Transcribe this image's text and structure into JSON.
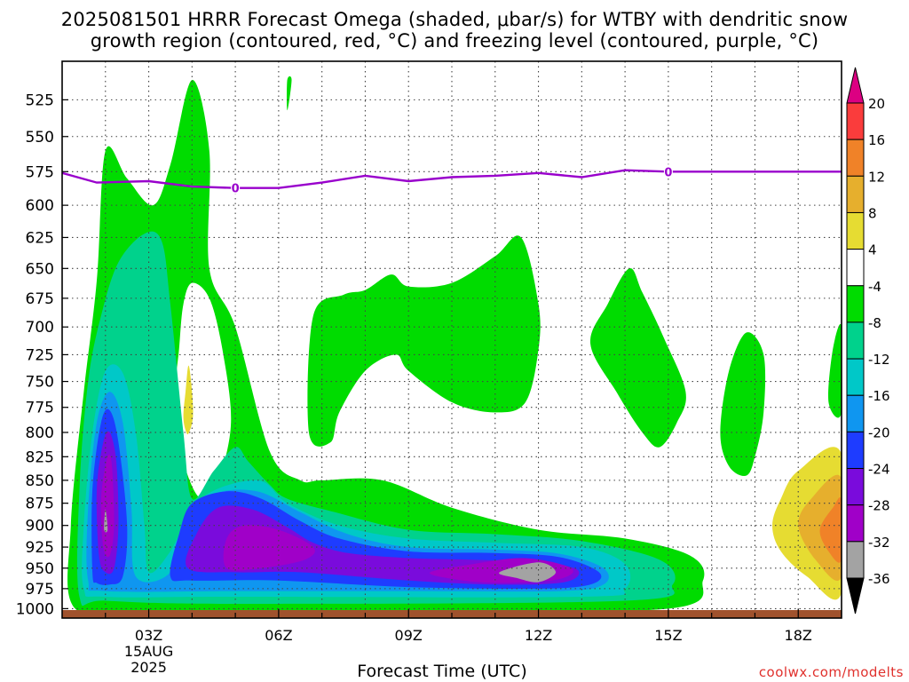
{
  "title_line1": "2025081501 HRRR Forecast Omega (shaded, μbar/s) for WTBY with dendritic snow",
  "title_line2": "growth region (contoured, red, °C) and freezing level (contoured, purple, °C)",
  "credit": "coolwx.com/modelts",
  "chart_data": {
    "type": "time-height cross section (filled contours)",
    "xlabel": "Forecast Time (UTC)",
    "x_ticks": [
      {
        "hour": 3,
        "label": "03Z"
      },
      {
        "hour": 6,
        "label": "06Z"
      },
      {
        "hour": 9,
        "label": "09Z"
      },
      {
        "hour": 12,
        "label": "12Z"
      },
      {
        "hour": 15,
        "label": "15Z"
      },
      {
        "hour": 18,
        "label": "18Z"
      }
    ],
    "date_label": [
      "15AUG",
      "2025"
    ],
    "xlim": [
      1,
      19
    ],
    "ylabel": "",
    "y_ticks": [
      525,
      550,
      575,
      600,
      625,
      650,
      675,
      700,
      725,
      750,
      775,
      800,
      825,
      850,
      875,
      900,
      925,
      950,
      975,
      1000
    ],
    "ylim": [
      500,
      1012
    ],
    "y_scale": "log pressure (hPa), inverted",
    "grid": true,
    "colorbar": {
      "levels": [
        -36,
        -32,
        -28,
        -24,
        -20,
        -16,
        -12,
        -8,
        -4,
        4,
        8,
        12,
        16,
        20
      ],
      "colors": [
        "#000000",
        "#a3a3a3",
        "#a000c8",
        "#7a0bdc",
        "#1e3cff",
        "#0f96f0",
        "#00c8c8",
        "#00d28c",
        "#00dc00",
        "#ffffff",
        "#e6dc32",
        "#e6af2d",
        "#f08228",
        "#fa3c3c",
        "#dc0082"
      ]
    },
    "freezing_level": {
      "label": "0",
      "color": "#9900cc",
      "points": [
        [
          1,
          576
        ],
        [
          1.8,
          583
        ],
        [
          3,
          582
        ],
        [
          4,
          586
        ],
        [
          5,
          587
        ],
        [
          6,
          587
        ],
        [
          7,
          583
        ],
        [
          8,
          578
        ],
        [
          9,
          582
        ],
        [
          10,
          579
        ],
        [
          11,
          578
        ],
        [
          12,
          576
        ],
        [
          13,
          579
        ],
        [
          14,
          574
        ],
        [
          15,
          575
        ],
        [
          17,
          575
        ],
        [
          19,
          575
        ]
      ],
      "label_hours": [
        5,
        15
      ]
    },
    "ground_color": "#a0522d",
    "omega_regions": [
      {
        "level": "-4",
        "color": "#00dc00",
        "points": [
          [
            1.3,
            1000
          ],
          [
            1.2,
            900
          ],
          [
            1.5,
            760
          ],
          [
            1.8,
            660
          ],
          [
            2,
            560
          ],
          [
            2.5,
            580
          ],
          [
            3.1,
            600
          ],
          [
            3.5,
            570
          ],
          [
            4,
            512
          ],
          [
            4.4,
            560
          ],
          [
            4.4,
            650
          ],
          [
            5,
            700
          ],
          [
            5.8,
            820
          ],
          [
            6.5,
            850
          ],
          [
            7,
            850
          ],
          [
            8.4,
            850
          ],
          [
            10,
            880
          ],
          [
            12,
            905
          ],
          [
            14,
            915
          ],
          [
            15.5,
            935
          ],
          [
            15.8,
            965
          ],
          [
            15,
            1000
          ],
          [
            9,
            1003
          ],
          [
            5,
            1003
          ],
          [
            3,
            1003
          ]
        ]
      },
      {
        "level": "-4",
        "color": "#00dc00",
        "points": [
          [
            6.7,
            800
          ],
          [
            6.8,
            690
          ],
          [
            7.5,
            672
          ],
          [
            8,
            668
          ],
          [
            8.6,
            655
          ],
          [
            9,
            665
          ],
          [
            10,
            662
          ],
          [
            11,
            640
          ],
          [
            11.6,
            625
          ],
          [
            12,
            680
          ],
          [
            12,
            720
          ],
          [
            11.7,
            770
          ],
          [
            11,
            780
          ],
          [
            10,
            770
          ],
          [
            9,
            740
          ],
          [
            8.7,
            725
          ],
          [
            8,
            740
          ],
          [
            7.4,
            780
          ],
          [
            7.2,
            810
          ]
        ]
      },
      {
        "level": "-4",
        "color": "#00dc00",
        "points": [
          [
            13.2,
            715
          ],
          [
            13.6,
            680
          ],
          [
            14.1,
            650
          ],
          [
            14.4,
            670
          ],
          [
            14.9,
            710
          ],
          [
            15.4,
            760
          ],
          [
            15.2,
            790
          ],
          [
            14.8,
            815
          ],
          [
            14.4,
            800
          ],
          [
            13.8,
            760
          ]
        ]
      },
      {
        "level": "-4",
        "color": "#00dc00",
        "points": [
          [
            16.2,
            800
          ],
          [
            16.4,
            740
          ],
          [
            16.8,
            705
          ],
          [
            17.2,
            725
          ],
          [
            17.2,
            780
          ],
          [
            17,
            825
          ],
          [
            16.8,
            845
          ],
          [
            16.4,
            835
          ]
        ]
      },
      {
        "level": "-4",
        "color": "#00dc00",
        "points": [
          [
            18.7,
            770
          ],
          [
            18.8,
            720
          ],
          [
            19,
            700
          ],
          [
            19,
            780
          ]
        ]
      },
      {
        "level": "-4",
        "color": "#00dc00",
        "points": [
          [
            6.2,
            512
          ],
          [
            6.3,
            512
          ],
          [
            6.2,
            532
          ]
        ]
      },
      {
        "level": "4",
        "color": "#ffffff",
        "points": [
          [
            3.7,
            720
          ],
          [
            3.8,
            680
          ],
          [
            4,
            662
          ],
          [
            4.4,
            675
          ],
          [
            4.7,
            720
          ],
          [
            4.9,
            790
          ],
          [
            4.6,
            850
          ],
          [
            4.2,
            870
          ],
          [
            3.8,
            830
          ],
          [
            3.6,
            770
          ]
        ]
      },
      {
        "level": "-8",
        "color": "#00d28c",
        "points": [
          [
            1.4,
            985
          ],
          [
            1.4,
            860
          ],
          [
            1.6,
            750
          ],
          [
            1.9,
            690
          ],
          [
            2.3,
            645
          ],
          [
            2.9,
            622
          ],
          [
            3.3,
            628
          ],
          [
            3.5,
            680
          ],
          [
            3.8,
            800
          ],
          [
            4,
            870
          ],
          [
            4.5,
            840
          ],
          [
            5,
            815
          ],
          [
            5.3,
            830
          ],
          [
            5.8,
            855
          ],
          [
            6.2,
            870
          ],
          [
            7.3,
            885
          ],
          [
            9,
            905
          ],
          [
            11,
            910
          ],
          [
            13,
            918
          ],
          [
            14.8,
            940
          ],
          [
            15.1,
            970
          ],
          [
            14,
            990
          ],
          [
            5,
            994
          ],
          [
            2,
            990
          ]
        ]
      },
      {
        "level": "-12",
        "color": "#00c8c8",
        "points": [
          [
            1.5,
            975
          ],
          [
            1.5,
            900
          ],
          [
            1.7,
            800
          ],
          [
            2,
            740
          ],
          [
            2.4,
            742
          ],
          [
            2.7,
            800
          ],
          [
            2.9,
            900
          ],
          [
            3,
            955
          ],
          [
            3.5,
            930
          ],
          [
            4.2,
            870
          ],
          [
            5.5,
            850
          ],
          [
            6.2,
            875
          ],
          [
            7.4,
            900
          ],
          [
            9,
            915
          ],
          [
            11,
            920
          ],
          [
            13,
            925
          ],
          [
            14,
            945
          ],
          [
            14,
            975
          ],
          [
            13,
            985
          ],
          [
            5,
            985
          ],
          [
            2,
            985
          ]
        ]
      },
      {
        "level": "-16",
        "color": "#0f96f0",
        "points": [
          [
            1.6,
            965
          ],
          [
            1.6,
            880
          ],
          [
            1.8,
            790
          ],
          [
            2.1,
            760
          ],
          [
            2.4,
            790
          ],
          [
            2.6,
            880
          ],
          [
            2.7,
            960
          ],
          [
            3.5,
            955
          ],
          [
            3.8,
            895
          ],
          [
            4.5,
            865
          ],
          [
            5.5,
            862
          ],
          [
            6.5,
            885
          ],
          [
            7.6,
            910
          ],
          [
            9,
            925
          ],
          [
            11,
            928
          ],
          [
            12.5,
            933
          ],
          [
            13.5,
            950
          ],
          [
            13.5,
            970
          ],
          [
            12.5,
            978
          ],
          [
            9,
            978
          ],
          [
            5,
            978
          ],
          [
            2,
            978
          ]
        ]
      },
      {
        "level": "-20",
        "color": "#1e3cff",
        "points": [
          [
            1.7,
            955
          ],
          [
            1.7,
            860
          ],
          [
            1.9,
            790
          ],
          [
            2.1,
            778
          ],
          [
            2.3,
            810
          ],
          [
            2.5,
            900
          ],
          [
            2.4,
            960
          ],
          [
            2.1,
            970
          ],
          [
            1.8,
            968
          ]
        ]
      },
      {
        "level": "-20",
        "color": "#1e3cff",
        "points": [
          [
            3.5,
            960
          ],
          [
            3.7,
            910
          ],
          [
            4,
            875
          ],
          [
            4.8,
            862
          ],
          [
            5.6,
            870
          ],
          [
            6.5,
            895
          ],
          [
            7.4,
            915
          ],
          [
            9,
            930
          ],
          [
            11,
            932
          ],
          [
            12.5,
            937
          ],
          [
            13.4,
            955
          ],
          [
            13.2,
            970
          ],
          [
            12,
            975
          ],
          [
            9,
            973
          ],
          [
            6,
            965
          ],
          [
            4,
            965
          ]
        ]
      },
      {
        "level": "-24",
        "color": "#7a0bdc",
        "points": [
          [
            1.85,
            935
          ],
          [
            1.8,
            860
          ],
          [
            1.95,
            810
          ],
          [
            2.1,
            800
          ],
          [
            2.25,
            830
          ],
          [
            2.3,
            900
          ],
          [
            2.2,
            950
          ],
          [
            2,
            955
          ]
        ]
      },
      {
        "level": "-24",
        "color": "#7a0bdc",
        "points": [
          [
            3.9,
            950
          ],
          [
            4.1,
            910
          ],
          [
            4.6,
            880
          ],
          [
            5.4,
            882
          ],
          [
            6.2,
            902
          ],
          [
            6.8,
            920
          ],
          [
            7.6,
            932
          ],
          [
            9,
            938
          ],
          [
            10.5,
            940
          ],
          [
            12,
            943
          ],
          [
            12.9,
            952
          ],
          [
            12.6,
            967
          ],
          [
            11,
            970
          ],
          [
            9,
            965
          ],
          [
            6.5,
            955
          ],
          [
            5,
            955
          ]
        ]
      },
      {
        "level": "-28",
        "color": "#a000c8",
        "points": [
          [
            1.95,
            925
          ],
          [
            1.9,
            870
          ],
          [
            2.05,
            825
          ],
          [
            2.15,
            835
          ],
          [
            2.2,
            900
          ],
          [
            2.1,
            935
          ]
        ]
      },
      {
        "level": "-28",
        "color": "#a000c8",
        "points": [
          [
            4.8,
            950
          ],
          [
            4.8,
            915
          ],
          [
            5.2,
            900
          ],
          [
            6,
            905
          ],
          [
            6.8,
            925
          ],
          [
            6.6,
            940
          ],
          [
            5.6,
            950
          ]
        ]
      },
      {
        "level": "-28",
        "color": "#a000c8",
        "points": [
          [
            9.5,
            955
          ],
          [
            10.5,
            945
          ],
          [
            11.6,
            938
          ],
          [
            12.5,
            945
          ],
          [
            12.8,
            955
          ],
          [
            12.3,
            965
          ],
          [
            11,
            968
          ],
          [
            10,
            963
          ]
        ]
      },
      {
        "level": "-32",
        "color": "#a3a3a3",
        "points": [
          [
            1.97,
            905
          ],
          [
            2,
            882
          ],
          [
            2.05,
            905
          ]
        ]
      },
      {
        "level": "-32",
        "color": "#a3a3a3",
        "points": [
          [
            11.1,
            955
          ],
          [
            12,
            943
          ],
          [
            12.4,
            955
          ],
          [
            12,
            967
          ],
          [
            11.5,
            962
          ]
        ]
      },
      {
        "level": "8",
        "color": "#e6dc32",
        "points": [
          [
            3.8,
            785
          ],
          [
            3.85,
            760
          ],
          [
            3.92,
            735
          ],
          [
            4,
            760
          ],
          [
            4.02,
            785
          ],
          [
            3.93,
            800
          ],
          [
            3.87,
            800
          ]
        ]
      },
      {
        "level": "8",
        "color": "#e6dc32",
        "points": [
          [
            17.4,
            900
          ],
          [
            17.6,
            870
          ],
          [
            18,
            840
          ],
          [
            19,
            822
          ],
          [
            19,
            980
          ],
          [
            18.2,
            960
          ],
          [
            17.6,
            930
          ]
        ]
      },
      {
        "level": "12",
        "color": "#e6af2d",
        "points": [
          [
            18,
            900
          ],
          [
            18.3,
            870
          ],
          [
            19,
            848
          ],
          [
            19,
            960
          ],
          [
            18.4,
            940
          ]
        ]
      },
      {
        "level": "16",
        "color": "#f08228",
        "points": [
          [
            18.5,
            905
          ],
          [
            18.8,
            880
          ],
          [
            19,
            872
          ],
          [
            19,
            940
          ],
          [
            18.7,
            930
          ]
        ]
      }
    ]
  }
}
